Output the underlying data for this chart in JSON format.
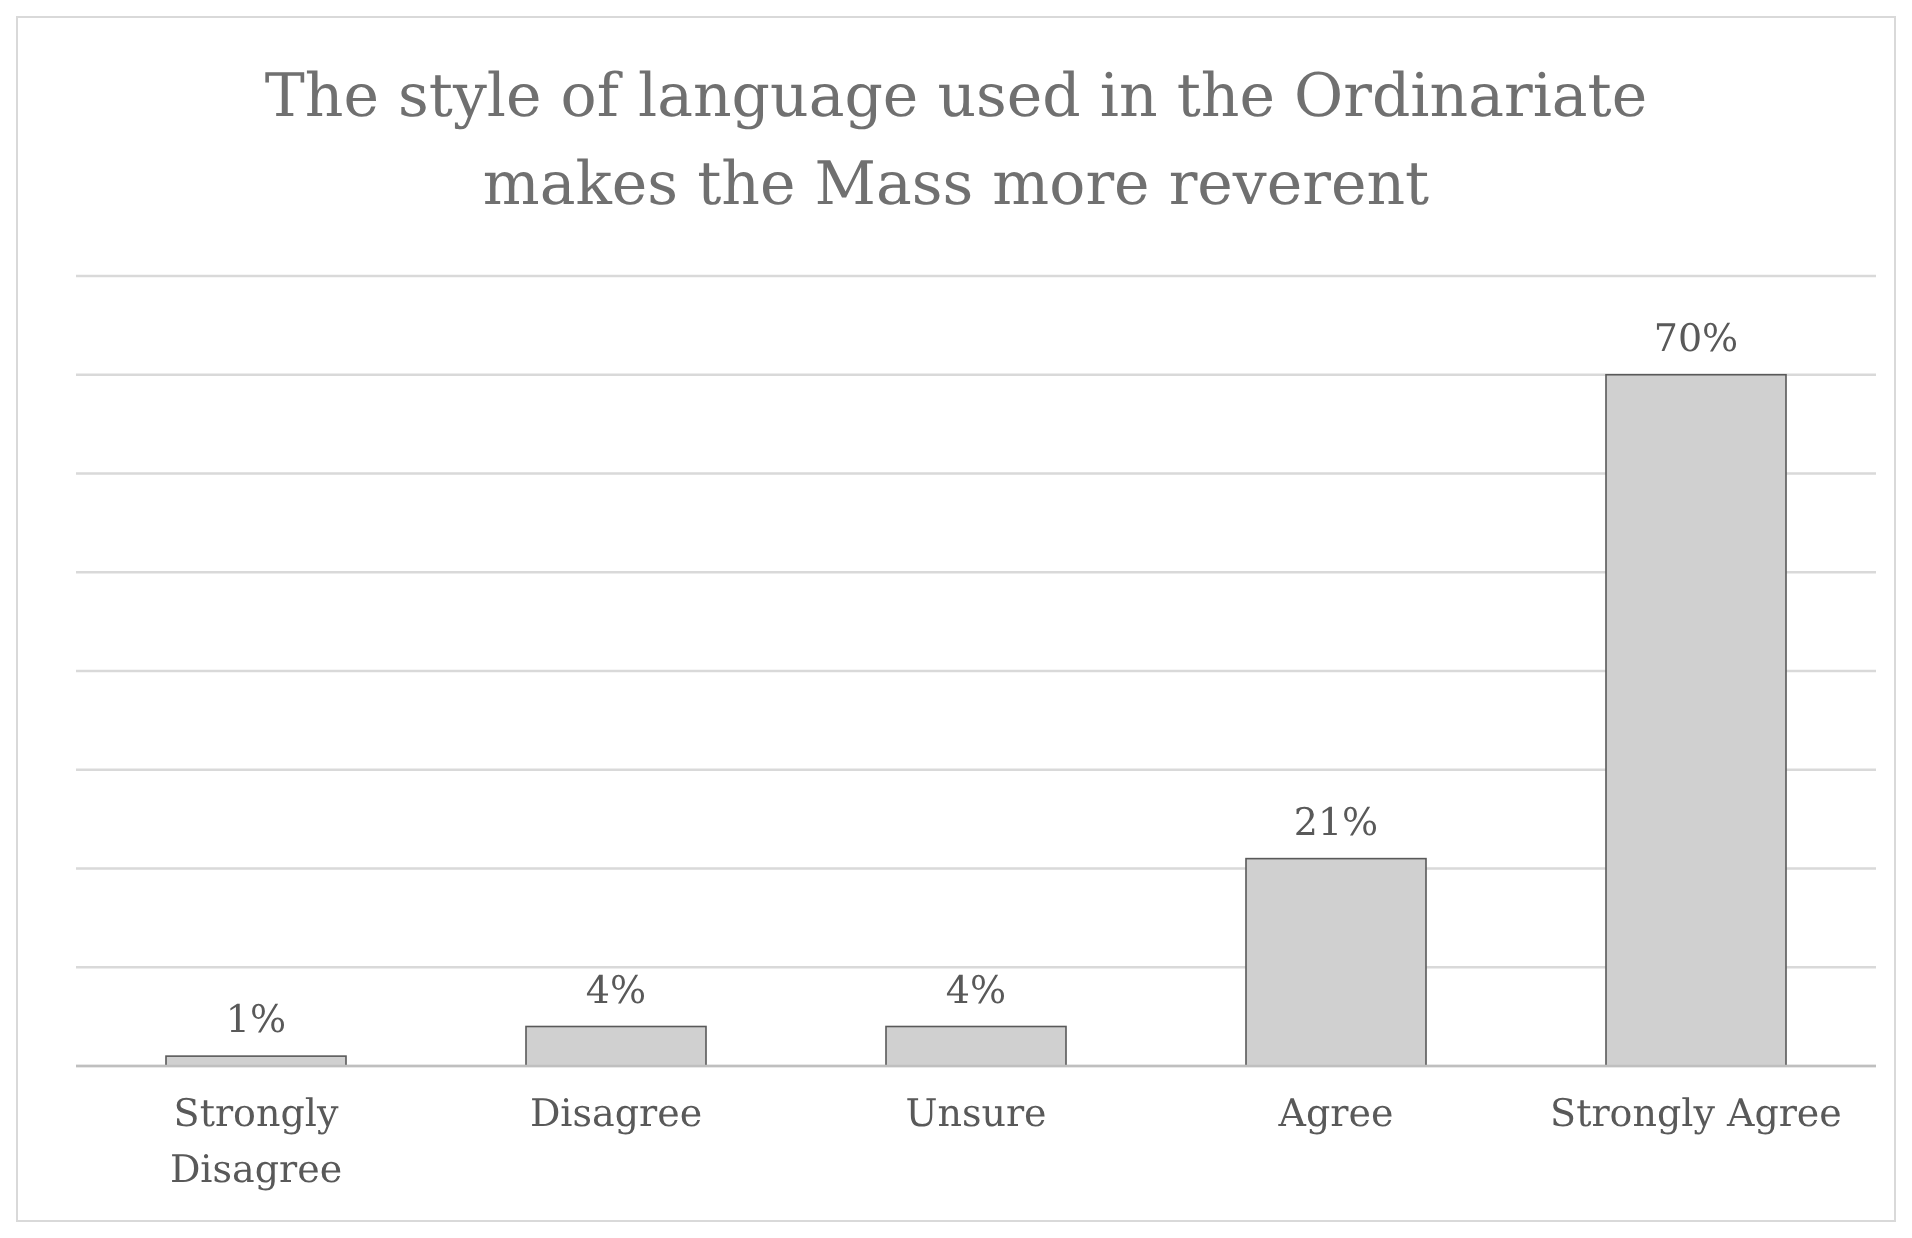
{
  "chart_data": {
    "type": "bar",
    "title": "The style of language used in the Ordinariate makes the Mass more reverent",
    "categories": [
      "Strongly Disagree",
      "Disagree",
      "Unsure",
      "Agree",
      "Strongly Agree"
    ],
    "values": [
      1,
      4,
      4,
      21,
      70
    ],
    "value_labels": [
      "1%",
      "4%",
      "4%",
      "21%",
      "70%"
    ],
    "color": "#d0d0d0",
    "ylim": [
      0,
      80
    ],
    "yticks": [
      {
        "value": 0,
        "label": null
      },
      {
        "value": 10,
        "label": null
      },
      {
        "value": 20,
        "label": null
      },
      {
        "value": 30,
        "label": null
      },
      {
        "value": 40,
        "label": null
      },
      {
        "value": 50,
        "label": null
      },
      {
        "value": 60,
        "label": null
      },
      {
        "value": 70,
        "label": null
      },
      {
        "value": 80,
        "label": null
      }
    ],
    "grid": "y"
  }
}
